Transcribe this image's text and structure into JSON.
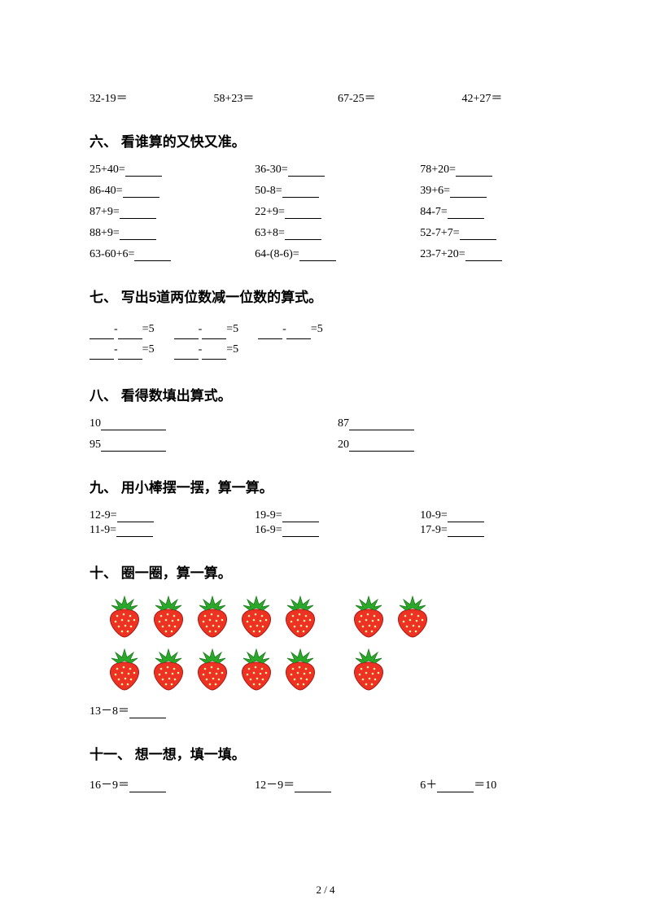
{
  "top_row": [
    "32-19＝",
    "58+23＝",
    "67-25＝",
    "42+27＝"
  ],
  "sec6": {
    "title": "六、 看谁算的又快又准。",
    "rows": [
      [
        "25+40=",
        "36-30=",
        "78+20="
      ],
      [
        "86-40=",
        "50-8=",
        "39+6="
      ],
      [
        "87+9=",
        "22+9=",
        "84-7="
      ],
      [
        "88+9=",
        "63+8=",
        "52-7+7="
      ],
      [
        "63-60+6=",
        "64-(8-6)=",
        "23-7+20="
      ]
    ]
  },
  "sec7": {
    "title": "七、 写出5道两位数减一位数的算式。",
    "suffix": "=5",
    "count_line1": 3,
    "count_line2": 2
  },
  "sec8": {
    "title": "八、 看得数填出算式。",
    "rows": [
      [
        "10",
        "87"
      ],
      [
        "95",
        "20"
      ]
    ]
  },
  "sec9": {
    "title": "九、 用小棒摆一摆，算一算。",
    "rows": [
      [
        "12-9=",
        "19-9=",
        "10-9="
      ],
      [
        "11-9=",
        "16-9=",
        "17-9="
      ]
    ]
  },
  "sec10": {
    "title": "十、 圈一圈，算一算。",
    "row1": {
      "group1": 5,
      "group2": 2
    },
    "row2": {
      "group1": 5,
      "group2": 1
    },
    "equation": "13－8＝"
  },
  "sec11": {
    "title": "十一、 想一想，填一填。",
    "items": [
      "16－9＝",
      "12－9＝"
    ],
    "item3_prefix": "6＋",
    "item3_suffix": "＝10"
  },
  "page_num": "2 / 4",
  "strawberry": {
    "body_fill": "#ed3224",
    "body_stroke": "#b01810",
    "leaf_fill": "#2aa82a",
    "leaf_stroke": "#1f7a1f",
    "seed": "#fff0a0"
  }
}
